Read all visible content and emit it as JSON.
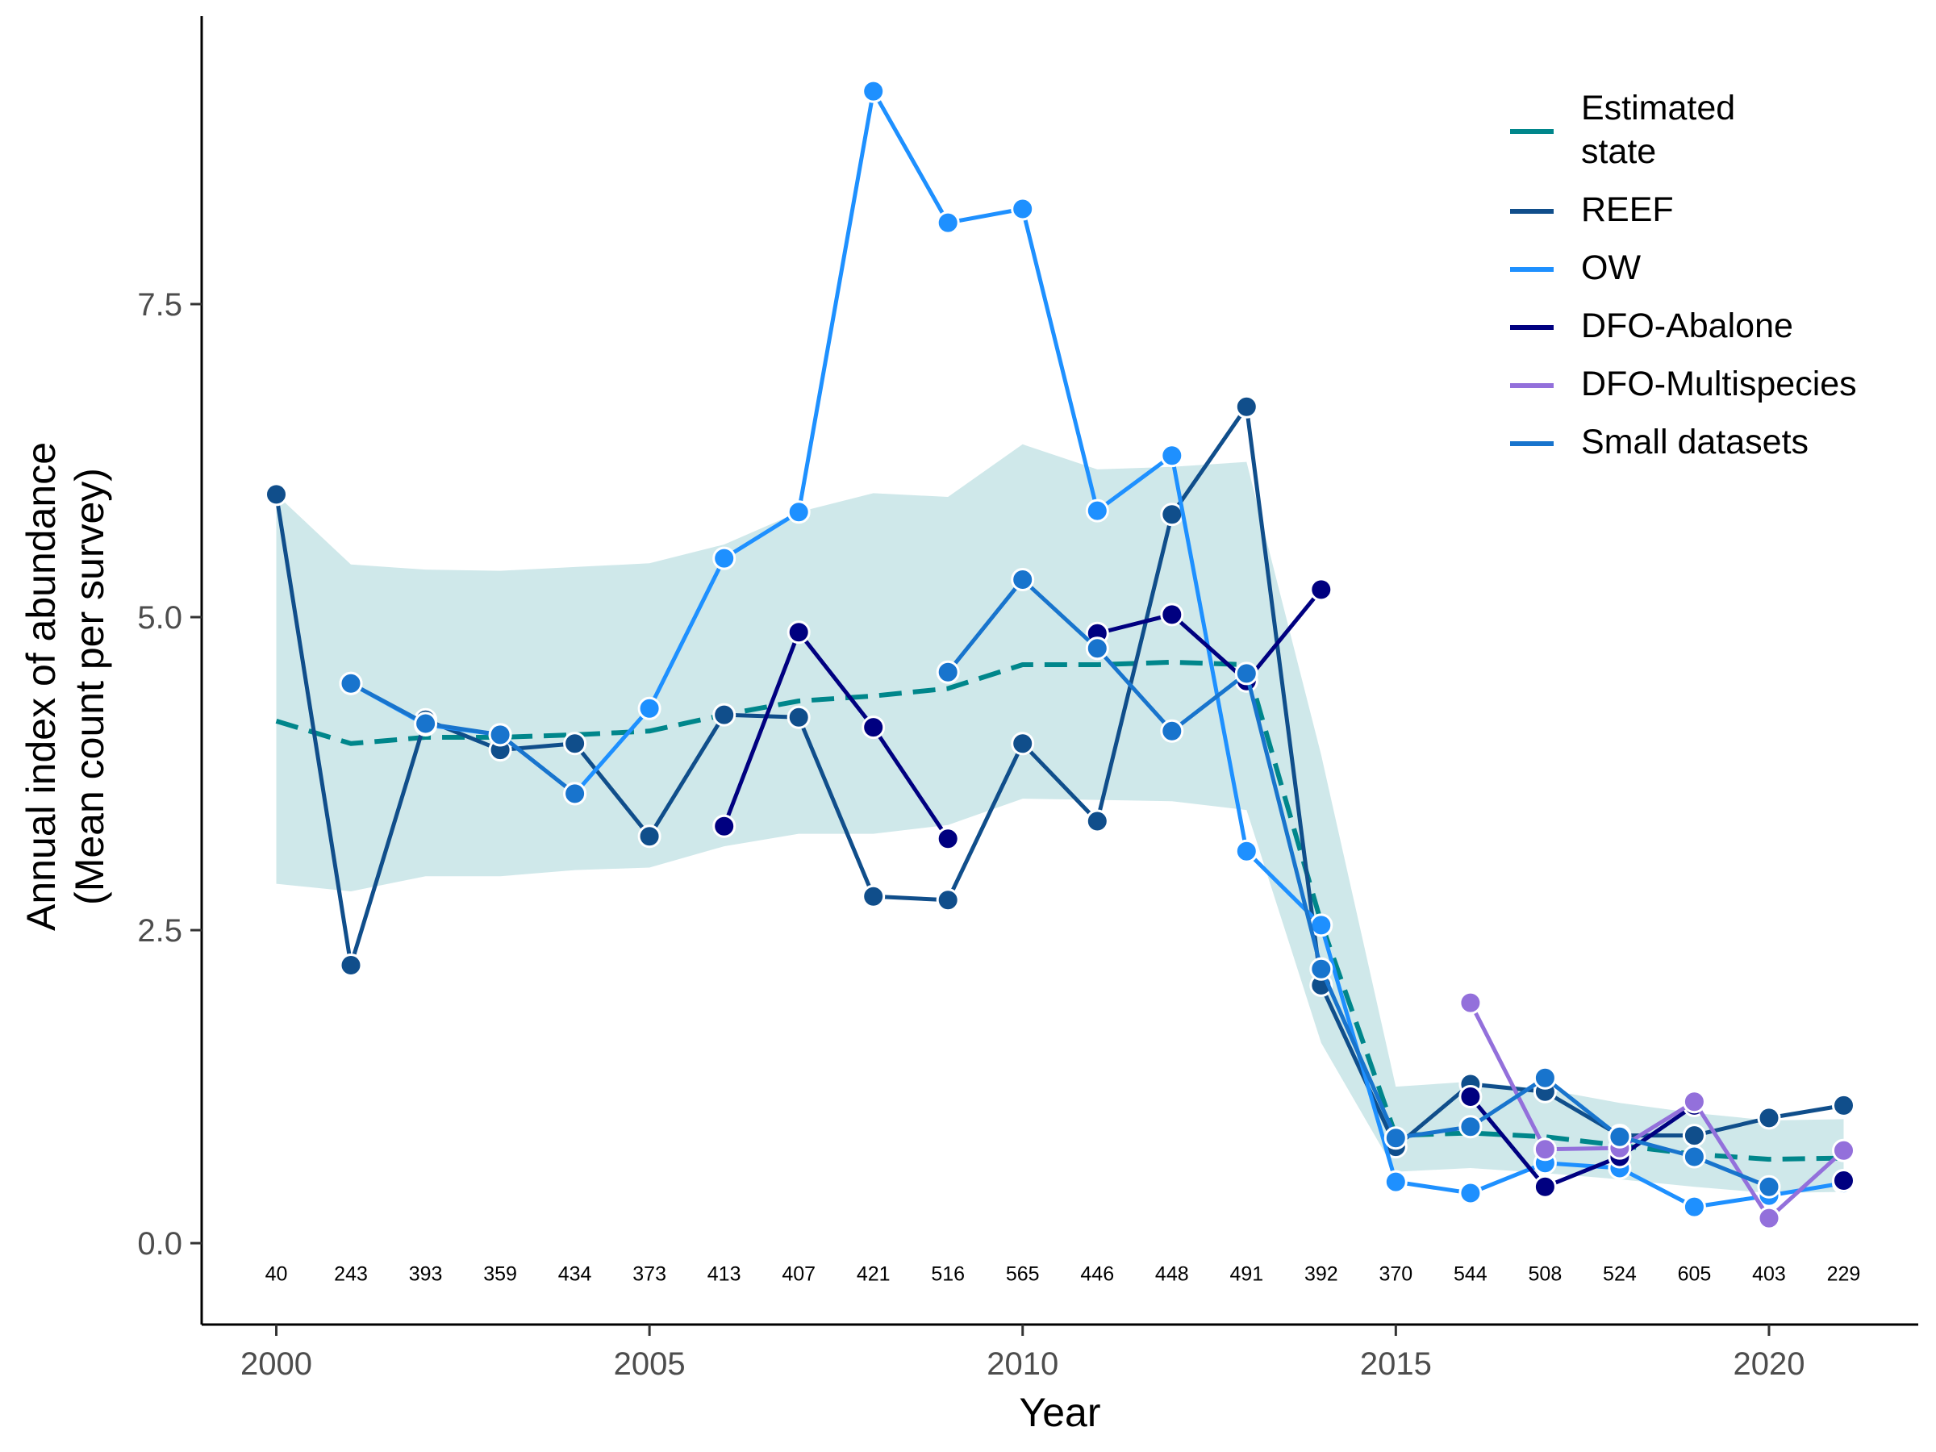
{
  "chart_data": {
    "type": "line",
    "xlabel": "Year",
    "ylabel_line1": "Annual index of abundance",
    "ylabel_line2": "(Mean count per survey)",
    "xlim": [
      1999,
      2022
    ],
    "ylim": [
      -0.65,
      9.8
    ],
    "x_ticks": [
      2000,
      2005,
      2010,
      2015,
      2020
    ],
    "y_ticks": [
      0.0,
      2.5,
      5.0,
      7.5
    ],
    "y_tick_labels": [
      "0.0",
      "2.5",
      "5.0",
      "7.5"
    ],
    "grid": false,
    "legend_position": "top-right",
    "survey_counts": {
      "years": [
        2000,
        2001,
        2002,
        2003,
        2004,
        2005,
        2006,
        2007,
        2008,
        2009,
        2010,
        2011,
        2012,
        2013,
        2014,
        2015,
        2016,
        2017,
        2018,
        2019,
        2020,
        2021
      ],
      "labels": [
        "40",
        "243",
        "393",
        "359",
        "434",
        "373",
        "413",
        "407",
        "421",
        "516",
        "565",
        "446",
        "448",
        "491",
        "392",
        "370",
        "544",
        "508",
        "524",
        "605",
        "403",
        "229"
      ]
    },
    "estimated_state": {
      "name": "Estimated state",
      "color": "#00868B",
      "years": [
        2000,
        2001,
        2002,
        2003,
        2004,
        2005,
        2006,
        2007,
        2008,
        2009,
        2010,
        2011,
        2012,
        2013,
        2014,
        2015,
        2016,
        2017,
        2018,
        2019,
        2020,
        2021
      ],
      "mean": [
        4.17,
        3.99,
        4.04,
        4.04,
        4.06,
        4.09,
        4.22,
        4.33,
        4.37,
        4.43,
        4.62,
        4.62,
        4.64,
        4.62,
        2.56,
        0.86,
        0.88,
        0.85,
        0.78,
        0.71,
        0.67,
        0.68
      ],
      "lower": [
        2.87,
        2.81,
        2.93,
        2.93,
        2.98,
        3.0,
        3.17,
        3.27,
        3.27,
        3.34,
        3.55,
        3.54,
        3.53,
        3.46,
        1.6,
        0.57,
        0.6,
        0.56,
        0.51,
        0.45,
        0.4,
        0.41
      ],
      "upper": [
        5.98,
        5.42,
        5.38,
        5.37,
        5.4,
        5.43,
        5.58,
        5.84,
        5.99,
        5.96,
        6.38,
        6.18,
        6.2,
        6.24,
        3.9,
        1.25,
        1.29,
        1.23,
        1.12,
        1.04,
        0.98,
        0.99
      ],
      "band_color": "#CFE8EA"
    },
    "series": [
      {
        "name": "REEF",
        "color": "#104E8B",
        "points": [
          [
            2000,
            5.98
          ],
          [
            2001,
            2.22
          ],
          [
            2002,
            4.18
          ],
          [
            2003,
            3.94
          ],
          [
            2004,
            3.99
          ],
          [
            2005,
            3.25
          ],
          [
            2006,
            4.22
          ],
          [
            2007,
            4.2
          ],
          [
            2008,
            2.77
          ],
          [
            2009,
            2.74
          ],
          [
            2010,
            3.99
          ],
          [
            2011,
            3.37
          ],
          [
            2012,
            5.82
          ],
          [
            2013,
            6.68
          ],
          [
            2014,
            2.06
          ],
          [
            2015,
            0.77
          ],
          [
            2016,
            1.27
          ],
          [
            2017,
            1.21
          ],
          [
            2018,
            0.86
          ],
          [
            2019,
            0.86
          ],
          [
            2020,
            1.0
          ],
          [
            2021,
            1.1
          ]
        ]
      },
      {
        "name": "OW",
        "color": "#1E90FF",
        "points": [
          [
            2001,
            4.47
          ],
          [
            2002,
            4.14
          ],
          [
            2003,
            4.06
          ],
          [
            2004,
            3.59
          ],
          [
            2005,
            4.27
          ],
          [
            2006,
            5.47
          ],
          [
            2007,
            5.84
          ],
          [
            2008,
            9.2
          ],
          [
            2009,
            8.15
          ],
          [
            2010,
            8.26
          ],
          [
            2011,
            5.85
          ],
          [
            2012,
            6.29
          ],
          [
            2013,
            3.13
          ],
          [
            2014,
            2.54
          ],
          [
            2015,
            0.49
          ],
          [
            2016,
            0.4
          ],
          [
            2017,
            0.64
          ],
          [
            2018,
            0.6
          ],
          [
            2019,
            0.29
          ],
          [
            2020,
            0.38
          ],
          [
            2021,
            0.48
          ]
        ]
      },
      {
        "name": "DFO-Abalone",
        "color": "#000080",
        "points": [
          [
            2006,
            3.33
          ],
          [
            2007,
            4.88
          ],
          [
            2008,
            4.12
          ],
          [
            2009,
            3.23
          ],
          null,
          [
            2011,
            4.87
          ],
          [
            2012,
            5.02
          ],
          [
            2013,
            4.49
          ],
          [
            2014,
            5.22
          ],
          null,
          [
            2016,
            1.17
          ],
          [
            2017,
            0.45
          ],
          [
            2018,
            0.69
          ],
          [
            2019,
            1.1
          ],
          null,
          [
            2021,
            0.5
          ]
        ]
      },
      {
        "name": "DFO-Multispecies",
        "color": "#9370DB",
        "points": [
          [
            2016,
            1.92
          ],
          [
            2017,
            0.75
          ],
          [
            2018,
            0.76
          ],
          [
            2019,
            1.13
          ],
          [
            2020,
            0.2
          ],
          [
            2021,
            0.74
          ]
        ]
      },
      {
        "name": "Small datasets",
        "color": "#1874CD",
        "points": [
          [
            2001,
            4.47
          ],
          [
            2002,
            4.15
          ],
          [
            2003,
            4.06
          ],
          [
            2004,
            3.59
          ],
          null,
          [
            2009,
            4.56
          ],
          [
            2010,
            5.3
          ],
          [
            2011,
            4.75
          ],
          [
            2012,
            4.09
          ],
          [
            2013,
            4.55
          ],
          [
            2014,
            2.19
          ],
          [
            2015,
            0.84
          ],
          [
            2016,
            0.93
          ],
          [
            2017,
            1.32
          ],
          [
            2018,
            0.85
          ],
          [
            2019,
            0.69
          ],
          [
            2020,
            0.45
          ]
        ]
      }
    ],
    "legend": [
      {
        "label_lines": [
          "Estimated",
          "state"
        ],
        "color": "#00868B"
      },
      {
        "label_lines": [
          "REEF"
        ],
        "color": "#104E8B"
      },
      {
        "label_lines": [
          "OW"
        ],
        "color": "#1E90FF"
      },
      {
        "label_lines": [
          "DFO-Abalone"
        ],
        "color": "#000080"
      },
      {
        "label_lines": [
          "DFO-Multispecies"
        ],
        "color": "#9370DB"
      },
      {
        "label_lines": [
          "Small datasets"
        ],
        "color": "#1874CD"
      }
    ]
  }
}
